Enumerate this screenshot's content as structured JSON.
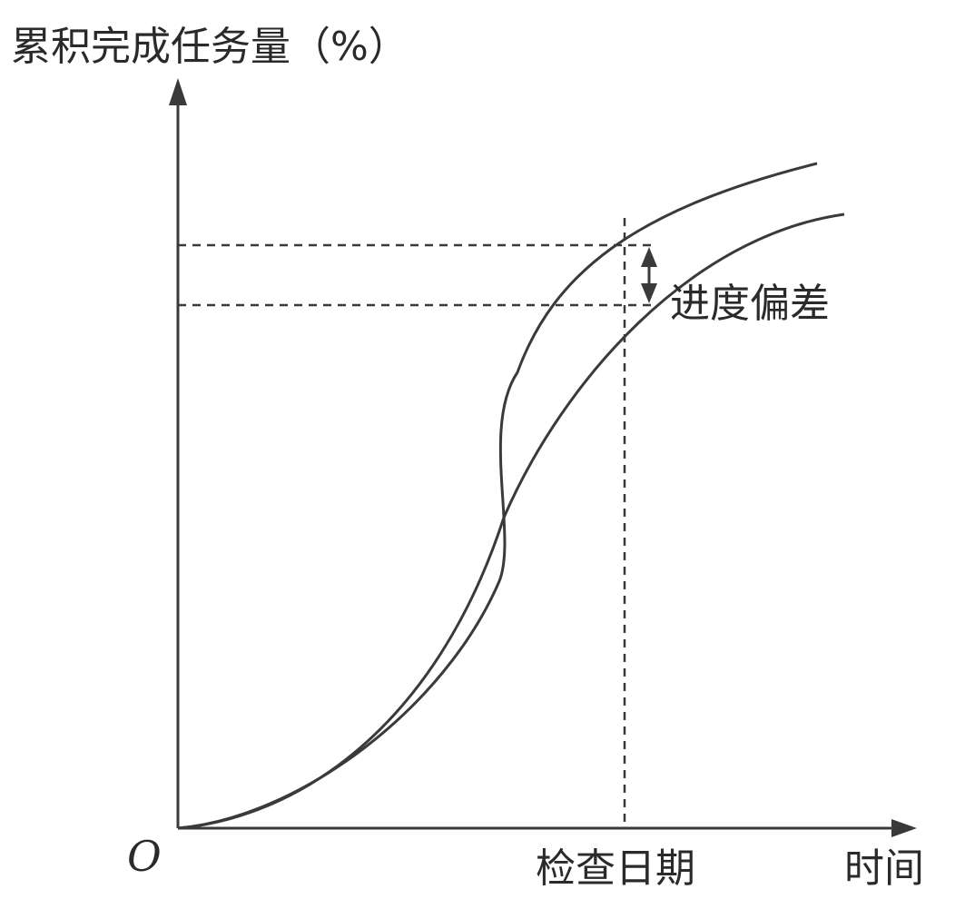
{
  "y_axis_label": "累积完成任务量（%）",
  "x_axis_label": "时间",
  "origin_label": "O",
  "check_date_label": "检查日期",
  "deviation_label": "进度偏差",
  "colors": {
    "line": "#3a3a3a",
    "text": "#2a2a2a",
    "background": "#ffffff"
  }
}
